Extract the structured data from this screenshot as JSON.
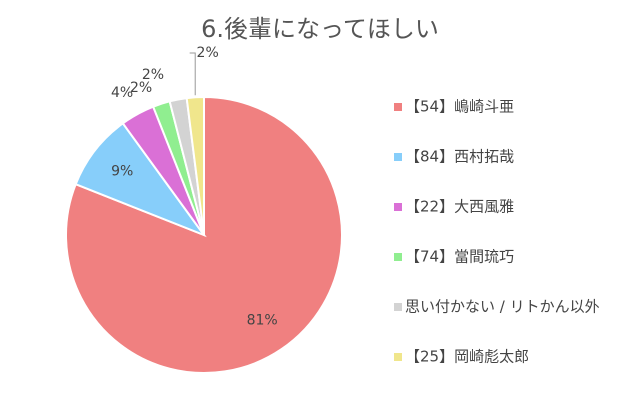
{
  "chart_data": {
    "type": "pie",
    "title": "6.後輩になってほしい",
    "categories": [
      "【54】嶋崎斗亜",
      "【84】西村拓哉",
      "【22】大西風雅",
      "【74】當間琉巧",
      "思い付かない / リトかん以外",
      "【25】岡崎彪太郎"
    ],
    "values": [
      81,
      9,
      4,
      2,
      2,
      2
    ],
    "value_labels": [
      "81%",
      "9%",
      "4%",
      "2%",
      "2%",
      "2%"
    ],
    "colors": [
      "#f08080",
      "#87cefa",
      "#da70d6",
      "#90ee90",
      "#d3d3d3",
      "#f0e68c"
    ],
    "legend": "right"
  }
}
